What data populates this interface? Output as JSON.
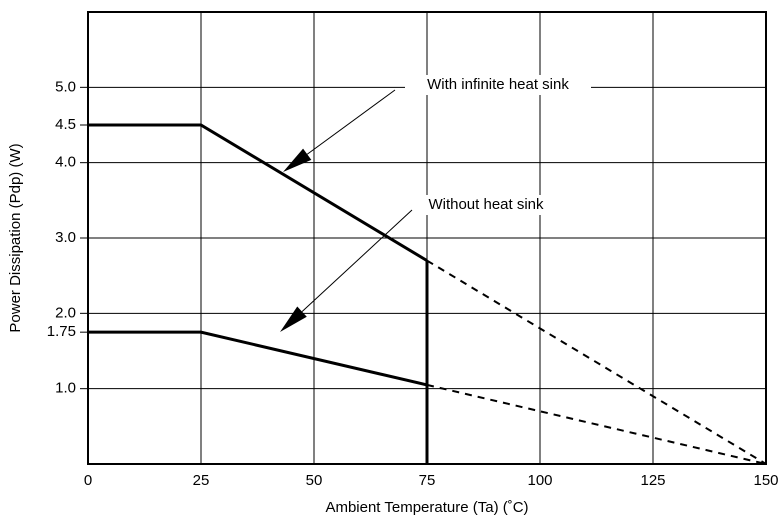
{
  "chart_data": {
    "type": "line",
    "xlabel": "Ambient Temperature (Ta) (˚C)",
    "ylabel": "Power Dissipation (Pdp) (W)",
    "xlim": [
      0,
      150
    ],
    "xticks": [
      0,
      25,
      50,
      75,
      100,
      125,
      150
    ],
    "ylim": [
      0,
      6
    ],
    "yticks": [
      {
        "value": 1,
        "label": "1.0"
      },
      1.75,
      {
        "value": 2,
        "label": "2.0"
      },
      {
        "value": 3,
        "label": "3.0"
      },
      {
        "value": 4,
        "label": "4.0"
      },
      4.5,
      {
        "value": 5,
        "label": "5.0"
      }
    ],
    "ygrid": [
      1,
      2,
      3,
      4,
      5
    ],
    "grid": true,
    "dashed_x": [
      75,
      150
    ],
    "series": [
      {
        "name": "With infinite heat sink",
        "color": "#000000",
        "x": [
          0,
          25,
          75,
          150
        ],
        "values": [
          4.5,
          4.5,
          2.7,
          0
        ]
      },
      {
        "name": "Without heat sink",
        "color": "#000000",
        "x": [
          0,
          25,
          75,
          150
        ],
        "values": [
          1.75,
          1.75,
          1.05,
          0
        ]
      }
    ]
  }
}
